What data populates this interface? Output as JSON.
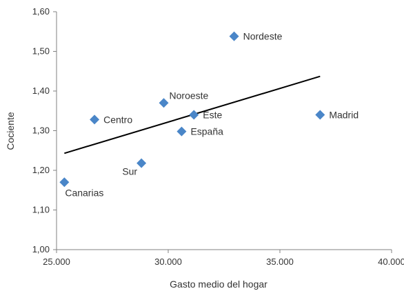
{
  "chart_data": {
    "type": "scatter",
    "xlabel": "Gasto medio del hogar",
    "ylabel": "Cociente",
    "xlim": [
      25000,
      40000
    ],
    "ylim": [
      1.0,
      1.6
    ],
    "xticks": [
      {
        "value": 25000,
        "label": "25.000"
      },
      {
        "value": 30000,
        "label": "30.000"
      },
      {
        "value": 35000,
        "label": "35.000"
      },
      {
        "value": 40000,
        "label": "40.000"
      }
    ],
    "yticks": [
      {
        "value": 1.0,
        "label": "1,00"
      },
      {
        "value": 1.1,
        "label": "1,10"
      },
      {
        "value": 1.2,
        "label": "1,20"
      },
      {
        "value": 1.3,
        "label": "1,30"
      },
      {
        "value": 1.4,
        "label": "1,40"
      },
      {
        "value": 1.5,
        "label": "1,50"
      },
      {
        "value": 1.6,
        "label": "1,60"
      }
    ],
    "grid": false,
    "marker_color": "#4a86c8",
    "trendline_color": "#000000",
    "points": [
      {
        "label": "Nordeste",
        "x": 32950,
        "y": 1.538,
        "label_pos": "right"
      },
      {
        "label": "Madrid",
        "x": 36800,
        "y": 1.34,
        "label_pos": "right"
      },
      {
        "label": "Noroeste",
        "x": 29800,
        "y": 1.37,
        "label_pos": "top-right"
      },
      {
        "label": "Este",
        "x": 31150,
        "y": 1.34,
        "label_pos": "right"
      },
      {
        "label": "Centro",
        "x": 26700,
        "y": 1.328,
        "label_pos": "right"
      },
      {
        "label": "España",
        "x": 30600,
        "y": 1.298,
        "label_pos": "right"
      },
      {
        "label": "Sur",
        "x": 28800,
        "y": 1.218,
        "label_pos": "bottom-left"
      },
      {
        "label": "Canarias",
        "x": 25350,
        "y": 1.17,
        "label_pos": "bottom-right"
      }
    ],
    "trendline": {
      "x": [
        25350,
        36800
      ],
      "y": [
        1.243,
        1.437
      ]
    }
  }
}
